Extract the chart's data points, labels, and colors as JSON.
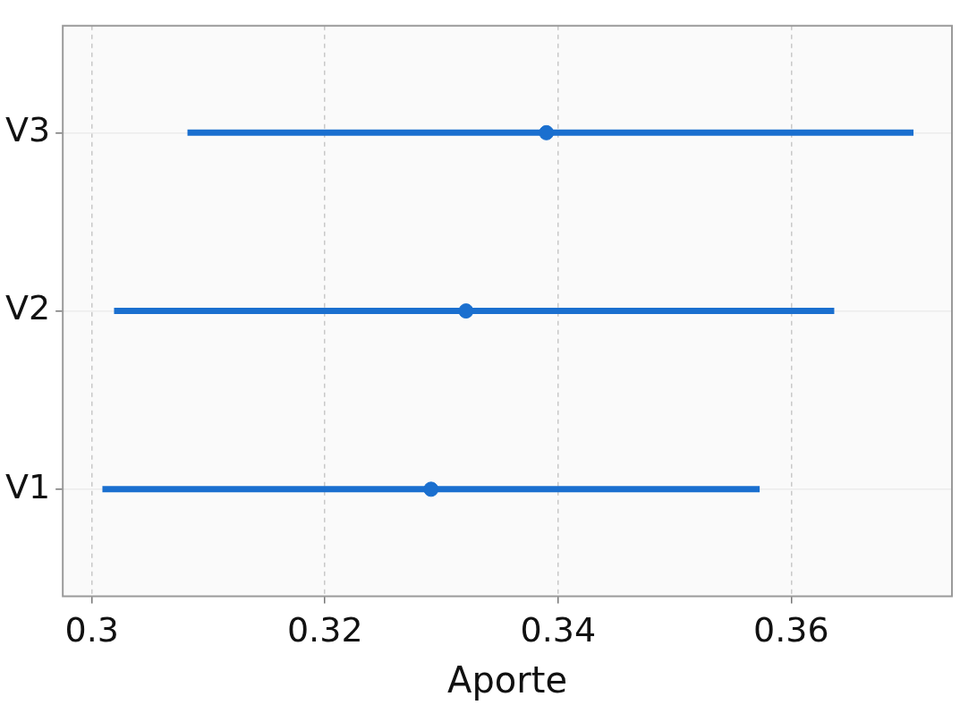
{
  "chart_data": {
    "type": "scatter",
    "orientation": "horizontal",
    "xlabel": "Aporte",
    "categories": [
      "V3",
      "V2",
      "V1"
    ],
    "values": [
      0.339,
      0.3321,
      0.3291
    ],
    "errors": [
      [
        0.3082,
        0.3705
      ],
      [
        0.3019,
        0.3637
      ],
      [
        0.3009,
        0.3573
      ]
    ],
    "color": "#1a6fcf",
    "marker": "circle",
    "xlim": [
      0.2975,
      0.3738
    ],
    "xticks": [
      {
        "value": 0.3,
        "label": "0.3"
      },
      0.32,
      0.34,
      0.36
    ],
    "grid": true,
    "legend": false
  }
}
